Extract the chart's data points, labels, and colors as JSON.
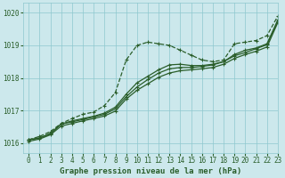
{
  "title": "Graphe pression niveau de la mer (hPa)",
  "bg_color": "#cce8ec",
  "grid_color": "#8ec8ce",
  "line_color": "#2a5e2a",
  "xlim": [
    -0.5,
    23
  ],
  "ylim": [
    1015.7,
    1020.3
  ],
  "yticks": [
    1016,
    1017,
    1018,
    1019,
    1020
  ],
  "xticks": [
    0,
    1,
    2,
    3,
    4,
    5,
    6,
    7,
    8,
    9,
    10,
    11,
    12,
    13,
    14,
    15,
    16,
    17,
    18,
    19,
    20,
    21,
    22,
    23
  ],
  "series": [
    {
      "x": [
        0,
        1,
        2,
        3,
        4,
        5,
        6,
        7,
        8,
        9,
        10,
        11,
        12,
        13,
        14,
        15,
        16,
        17,
        18,
        19,
        20,
        21,
        22,
        23
      ],
      "y": [
        1016.1,
        1016.2,
        1016.35,
        1016.6,
        1016.75,
        1016.88,
        1016.95,
        1017.15,
        1017.55,
        1018.55,
        1019.0,
        1019.1,
        1019.05,
        1019.0,
        1018.85,
        1018.7,
        1018.55,
        1018.5,
        1018.55,
        1019.05,
        1019.1,
        1019.15,
        1019.3,
        1019.9
      ],
      "style": "--",
      "marker": "D",
      "markersize": 2.5,
      "linewidth": 0.9
    },
    {
      "x": [
        0,
        1,
        2,
        3,
        4,
        5,
        6,
        7,
        8,
        9,
        10,
        11,
        12,
        13,
        14,
        15,
        16,
        17,
        18,
        19,
        20,
        21,
        22,
        23
      ],
      "y": [
        1016.1,
        1016.15,
        1016.28,
        1016.58,
        1016.68,
        1016.75,
        1016.82,
        1016.92,
        1017.1,
        1017.5,
        1017.85,
        1018.05,
        1018.25,
        1018.4,
        1018.42,
        1018.38,
        1018.38,
        1018.42,
        1018.5,
        1018.72,
        1018.85,
        1018.92,
        1019.05,
        1019.78
      ],
      "style": "-",
      "marker": "D",
      "markersize": 2.5,
      "linewidth": 0.9
    },
    {
      "x": [
        0,
        1,
        2,
        3,
        4,
        5,
        6,
        7,
        8,
        9,
        10,
        11,
        12,
        13,
        14,
        15,
        16,
        17,
        18,
        19,
        20,
        21,
        22,
        23
      ],
      "y": [
        1016.1,
        1016.15,
        1016.3,
        1016.58,
        1016.65,
        1016.72,
        1016.8,
        1016.88,
        1017.05,
        1017.42,
        1017.72,
        1017.95,
        1018.15,
        1018.28,
        1018.32,
        1018.32,
        1018.35,
        1018.4,
        1018.5,
        1018.68,
        1018.78,
        1018.9,
        1019.02,
        1019.75
      ],
      "style": "-",
      "marker": "D",
      "markersize": 2.5,
      "linewidth": 0.9
    },
    {
      "x": [
        0,
        1,
        2,
        3,
        4,
        5,
        6,
        7,
        8,
        9,
        10,
        11,
        12,
        13,
        14,
        15,
        16,
        17,
        18,
        19,
        20,
        21,
        22,
        23
      ],
      "y": [
        1016.05,
        1016.12,
        1016.25,
        1016.52,
        1016.6,
        1016.68,
        1016.75,
        1016.83,
        1016.98,
        1017.35,
        1017.62,
        1017.82,
        1018.02,
        1018.15,
        1018.22,
        1018.25,
        1018.28,
        1018.32,
        1018.42,
        1018.6,
        1018.72,
        1018.82,
        1018.95,
        1019.7
      ],
      "style": "-",
      "marker": "D",
      "markersize": 2.5,
      "linewidth": 0.9
    }
  ]
}
